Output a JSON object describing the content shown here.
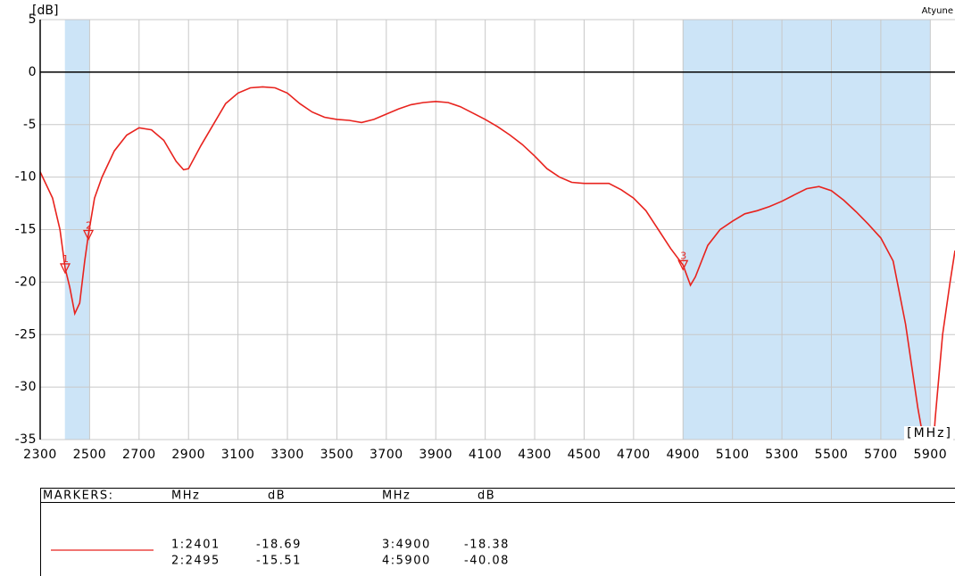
{
  "chart_data": {
    "type": "line",
    "y_label": "[dB]",
    "x_label": "[MHz]",
    "corner_text": "Atyune",
    "xlim": [
      2300,
      6000
    ],
    "ylim": [
      -35,
      5
    ],
    "xticks": [
      2300,
      2500,
      2700,
      2900,
      3100,
      3300,
      3500,
      3700,
      3900,
      4100,
      4300,
      4500,
      4700,
      4900,
      5100,
      5300,
      5500,
      5700,
      5900
    ],
    "yticks": [
      5,
      0,
      -5,
      -10,
      -15,
      -20,
      -25,
      -30,
      -35
    ],
    "grid": true,
    "reference_line": 0,
    "bands": [
      [
        2400,
        2500
      ],
      [
        4900,
        5900
      ]
    ],
    "band_color": "#cce4f7",
    "series": [
      {
        "color": "#e8231e",
        "x": [
          2300,
          2350,
          2380,
          2401,
          2420,
          2440,
          2460,
          2480,
          2495,
          2520,
          2550,
          2600,
          2650,
          2700,
          2750,
          2800,
          2850,
          2880,
          2900,
          2950,
          3000,
          3050,
          3100,
          3150,
          3200,
          3250,
          3300,
          3350,
          3400,
          3450,
          3500,
          3550,
          3600,
          3650,
          3700,
          3750,
          3800,
          3850,
          3900,
          3950,
          4000,
          4050,
          4100,
          4150,
          4200,
          4250,
          4300,
          4350,
          4400,
          4450,
          4500,
          4550,
          4600,
          4650,
          4700,
          4750,
          4800,
          4850,
          4900,
          4930,
          4950,
          5000,
          5050,
          5100,
          5150,
          5200,
          5250,
          5300,
          5350,
          5400,
          5450,
          5500,
          5550,
          5600,
          5650,
          5700,
          5750,
          5800,
          5850,
          5880,
          5900,
          5920,
          5950,
          5980,
          6000
        ],
        "values": [
          -9.5,
          -12,
          -15,
          -18.69,
          -20.5,
          -23,
          -22,
          -18,
          -15.51,
          -12,
          -10,
          -7.5,
          -6,
          -5.3,
          -5.5,
          -6.5,
          -8.5,
          -9.3,
          -9.2,
          -7,
          -5,
          -3,
          -2,
          -1.5,
          -1.4,
          -1.5,
          -2,
          -3,
          -3.8,
          -4.3,
          -4.5,
          -4.6,
          -4.8,
          -4.5,
          -4,
          -3.5,
          -3.1,
          -2.9,
          -2.8,
          -2.9,
          -3.3,
          -3.9,
          -4.5,
          -5.2,
          -6,
          -6.9,
          -8,
          -9.2,
          -10,
          -10.5,
          -10.6,
          -10.6,
          -10.6,
          -11.2,
          -12,
          -13.2,
          -15,
          -16.8,
          -18.38,
          -20.3,
          -19.5,
          -16.5,
          -15,
          -14.2,
          -13.5,
          -13.2,
          -12.8,
          -12.3,
          -11.7,
          -11.1,
          -10.9,
          -11.3,
          -12.2,
          -13.3,
          -14.5,
          -15.8,
          -18,
          -24,
          -32,
          -36,
          -40.08,
          -33,
          -25,
          -20,
          -17
        ]
      }
    ],
    "markers": [
      {
        "label": "1",
        "x": 2401,
        "y": -18.69
      },
      {
        "label": "2",
        "x": 2495,
        "y": -15.51
      },
      {
        "label": "3",
        "x": 4900,
        "y": -18.38
      }
    ]
  },
  "marker_table": {
    "headers": [
      "MARKERS:",
      "MHz",
      "dB",
      "MHz",
      "dB"
    ],
    "rows": [
      [
        "1:2401",
        "-18.69",
        "3:4900",
        "-18.38"
      ],
      [
        "2:2495",
        "-15.51",
        "4:5900",
        "-40.08"
      ]
    ]
  }
}
